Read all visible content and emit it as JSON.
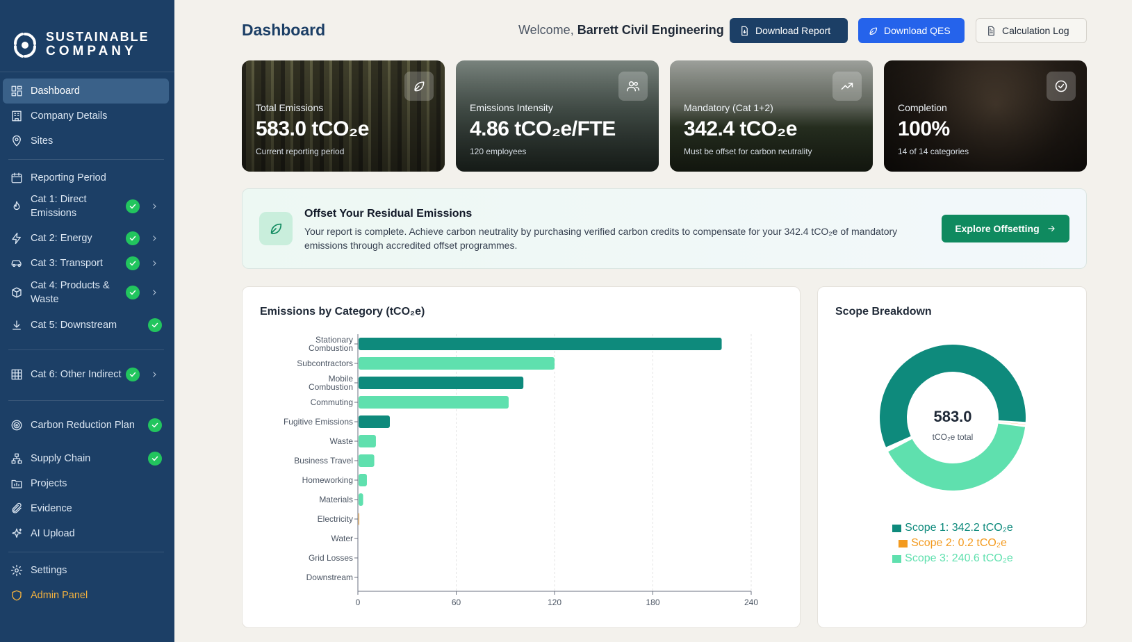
{
  "brand": {
    "line1": "SUSTAINABLE",
    "line2": "COMPANY"
  },
  "sidebar": {
    "items": [
      {
        "label": "Dashboard",
        "icon": "dashboard-icon"
      },
      {
        "label": "Company Details",
        "icon": "building-icon"
      },
      {
        "label": "Sites",
        "icon": "map-pin-icon"
      },
      {
        "label": "Reporting Period",
        "icon": "calendar-icon"
      },
      {
        "label": "Cat 1: Direct Emissions",
        "icon": "flame-icon",
        "complete": true
      },
      {
        "label": "Cat 2: Energy",
        "icon": "zap-icon",
        "complete": true
      },
      {
        "label": "Cat 3: Transport",
        "icon": "car-icon",
        "complete": true
      },
      {
        "label": "Cat 4: Products & Waste",
        "icon": "box-icon",
        "complete": true
      },
      {
        "label": "Cat 5: Downstream",
        "icon": "download-icon",
        "complete": true
      },
      {
        "label": "Cat 6: Other Indirect",
        "icon": "grid-icon",
        "complete": true
      },
      {
        "label": "Carbon Reduction Plan",
        "icon": "target-icon",
        "complete": true
      },
      {
        "label": "Supply Chain",
        "icon": "network-icon",
        "complete": true
      },
      {
        "label": "Projects",
        "icon": "folder-icon"
      },
      {
        "label": "Evidence",
        "icon": "paperclip-icon"
      },
      {
        "label": "AI Upload",
        "icon": "sparkles-icon"
      },
      {
        "label": "Settings",
        "icon": "gear-icon"
      },
      {
        "label": "Admin Panel",
        "icon": "shield-icon"
      }
    ]
  },
  "header": {
    "title": "Dashboard",
    "welcome_prefix": "Welcome,",
    "company": "Barrett Civil Engineering",
    "download_report": "Download Report",
    "download_qes": "Download QES",
    "calculation_log": "Calculation Log"
  },
  "kpis": [
    {
      "label": "Total Emissions",
      "value": "583.0 tCO₂e",
      "sub": "Current reporting period",
      "icon": "leaf-icon"
    },
    {
      "label": "Emissions Intensity",
      "value": "4.86 tCO₂e/FTE",
      "sub": "120 employees",
      "icon": "users-icon"
    },
    {
      "label": "Mandatory (Cat 1+2)",
      "value": "342.4 tCO₂e",
      "sub": "Must be offset for carbon neutrality",
      "icon": "trending-up-icon"
    },
    {
      "label": "Completion",
      "value": "100%",
      "sub": "14 of 14 categories",
      "icon": "check-circle-icon"
    }
  ],
  "banner": {
    "title": "Offset Your Residual Emissions",
    "text": "Your report is complete. Achieve carbon neutrality by purchasing verified carbon credits to compensate for your 342.4 tCO₂e of mandatory emissions through accredited offset programmes.",
    "button": "Explore Offsetting"
  },
  "panels": {
    "bar_title": "Emissions by Category (tCO₂e)",
    "donut_title": "Scope Breakdown"
  },
  "colors": {
    "dark_teal": "#0e8a7c",
    "light_green": "#5fe0ae",
    "orange": "#f39a1e"
  },
  "chart_data": [
    {
      "type": "bar",
      "orientation": "horizontal",
      "title": "Emissions by Category (tCO₂e)",
      "categories": [
        "Stationary Combustion",
        "Subcontractors",
        "Mobile Combustion",
        "Commuting",
        "Fugitive Emissions",
        "Waste",
        "Business Travel",
        "Homeworking",
        "Materials",
        "Electricity",
        "Water",
        "Grid Losses",
        "Downstream"
      ],
      "values": [
        222,
        120,
        101,
        92,
        19.5,
        11,
        10,
        5.5,
        3.2,
        0.2,
        0,
        0,
        0
      ],
      "bar_colors": [
        "#0e8a7c",
        "#5fe0ae",
        "#0e8a7c",
        "#5fe0ae",
        "#0e8a7c",
        "#5fe0ae",
        "#5fe0ae",
        "#5fe0ae",
        "#5fe0ae",
        "#f39a1e",
        "#5fe0ae",
        "#5fe0ae",
        "#5fe0ae"
      ],
      "xlim": [
        0,
        240
      ],
      "xticks": [
        0,
        60,
        120,
        180,
        240
      ],
      "grid": true
    },
    {
      "type": "pie",
      "style": "donut",
      "title": "Scope Breakdown",
      "center_value": "583.0",
      "center_label": "tCO₂e total",
      "slices": [
        {
          "label": "Scope 1",
          "value": 342.2,
          "legend": "Scope 1: 342.2 tCO₂e",
          "color": "#0e8a7c"
        },
        {
          "label": "Scope 2",
          "value": 0.2,
          "legend": "Scope 2: 0.2 tCO₂e",
          "color": "#f39a1e"
        },
        {
          "label": "Scope 3",
          "value": 240.6,
          "legend": "Scope 3: 240.6 tCO₂e",
          "color": "#5fe0ae"
        }
      ],
      "legend_position": "bottom"
    }
  ]
}
